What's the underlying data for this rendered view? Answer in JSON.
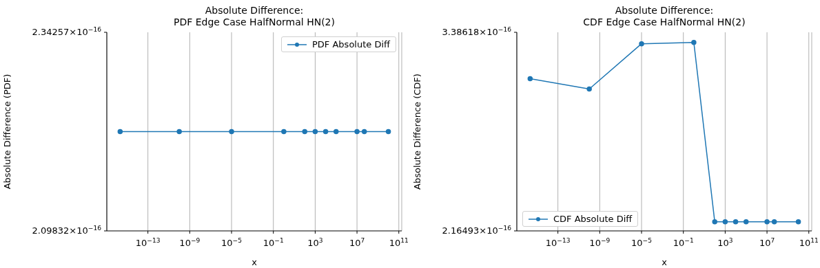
{
  "chart_data": [
    {
      "type": "line",
      "title": "Absolute Difference:\nPDF Edge Case HalfNormal HN(2)",
      "xlabel": "x",
      "ylabel": "Absolute Difference (PDF)",
      "log": "xy",
      "grid": "x",
      "legend": "top right",
      "marker": "circle",
      "xlim": [
        1.17e-17,
        190000000000.0
      ],
      "ylim": [
        2.09832e-16,
        2.34257e-16
      ],
      "xticks": [
        {
          "value": 1e-13,
          "label": "10$^{−13}$"
        },
        {
          "value": 1e-09,
          "label": "10$^{−9}$"
        },
        {
          "value": 1e-05,
          "label": "10$^{−5}$"
        },
        {
          "value": 0.1,
          "label": "10$^{−1}$"
        },
        {
          "value": 1000,
          "label": "10$^{3}$"
        },
        {
          "value": 10000000.0,
          "label": "10$^{7}$"
        },
        {
          "value": 100000000000.0,
          "label": "10$^{11}$"
        }
      ],
      "yticks": [
        {
          "value": 2.09832e-16,
          "label": "2.09832×10$^{−16}$"
        },
        {
          "value": 2.34257e-16,
          "label": "2.34257×10$^{−16}$"
        }
      ],
      "series": [
        {
          "name": "PDF Absolute Diff",
          "color": "#1f77b4",
          "x": [
            2.2e-16,
            1e-10,
            1e-05,
            1,
            100,
            1000,
            10000,
            100000,
            10000000.0,
            50000000.0,
            10000000000.0
          ],
          "values": [
            2.217e-16,
            2.217e-16,
            2.217e-16,
            2.217e-16,
            2.217e-16,
            2.217e-16,
            2.217e-16,
            2.217e-16,
            2.217e-16,
            2.217e-16,
            2.217e-16
          ]
        }
      ]
    },
    {
      "type": "line",
      "title": "Absolute Difference:\nCDF Edge Case HalfNormal HN(2)",
      "xlabel": "x",
      "ylabel": "Absolute Difference (CDF)",
      "log": "xy",
      "grid": "x",
      "legend": "bottom left",
      "marker": "circle",
      "xlim": [
        1.17e-17,
        190000000000.0
      ],
      "ylim": [
        2.16493e-16,
        3.38618e-16
      ],
      "xticks": [
        {
          "value": 1e-13,
          "label": "10$^{−13}$"
        },
        {
          "value": 1e-09,
          "label": "10$^{−9}$"
        },
        {
          "value": 1e-05,
          "label": "10$^{−5}$"
        },
        {
          "value": 0.1,
          "label": "10$^{−1}$"
        },
        {
          "value": 1000,
          "label": "10$^{3}$"
        },
        {
          "value": 10000000.0,
          "label": "10$^{7}$"
        },
        {
          "value": 100000000000.0,
          "label": "10$^{11}$"
        }
      ],
      "yticks": [
        {
          "value": 2.16493e-16,
          "label": "2.16493×10$^{−16}$"
        },
        {
          "value": 3.38618e-16,
          "label": "3.38618×10$^{−16}$"
        }
      ],
      "series": [
        {
          "name": "CDF Absolute Diff",
          "color": "#1f77b4",
          "x": [
            2.2e-16,
            1e-10,
            1e-05,
            1,
            100,
            1000,
            10000,
            100000,
            10000000.0,
            50000000.0,
            10000000000.0
          ],
          "values": [
            3.05e-16,
            2.98e-16,
            3.3e-16,
            3.31e-16,
            2.21e-16,
            2.21e-16,
            2.21e-16,
            2.21e-16,
            2.21e-16,
            2.21e-16,
            2.21e-16
          ]
        }
      ]
    }
  ]
}
